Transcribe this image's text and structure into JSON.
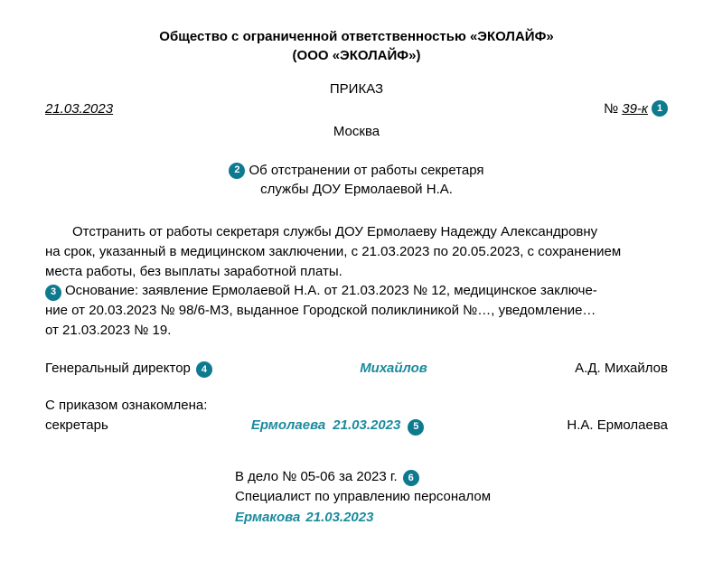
{
  "header": {
    "line1": "Общество с ограниченной ответственностью «ЭКОЛАЙФ»",
    "line2": "(ООО «ЭКОЛАЙФ»)"
  },
  "order_title": "ПРИКАЗ",
  "date": "21.03.2023",
  "number_label": "№",
  "number_value": "39-к",
  "city": "Москва",
  "subject": {
    "line1": "Об отстранении от работы секретаря",
    "line2": "службы ДОУ Ермолаевой Н.А."
  },
  "body": {
    "para1_l1": "Отстранить от работы секретаря службы ДОУ Ермолаеву Надежду Александровну",
    "para1_l2": "на срок, указанный в медицинском заключении, с 21.03.2023 по 20.05.2023, с сохранением",
    "para1_l3": "места работы, без выплаты заработной платы.",
    "basis_l1": "Основание: заявление Ермолаевой Н.А. от 21.03.2023 № 12, медицинское заключе-",
    "basis_l2": "ние от 20.03.2023 № 98/6-МЗ, выданное Городской поликлиникой №…, уведомление…",
    "basis_l3": "от 21.03.2023 № 19."
  },
  "signer": {
    "position": "Генеральный директор",
    "signature": "Михайлов",
    "name": "А.Д. Михайлов"
  },
  "ack": {
    "title": "С приказом ознакомлена:",
    "position": "секретарь",
    "signature": "Ермолаева",
    "date": "21.03.2023",
    "name": "Н.А. Ермолаева"
  },
  "file": {
    "line1": "В дело № 05-06 за 2023 г.",
    "line2": "Специалист по управлению персоналом",
    "signature": "Ермакова",
    "date": "21.03.2023"
  },
  "markers": {
    "m1": "1",
    "m2": "2",
    "m3": "3",
    "m4": "4",
    "m5": "5",
    "m6": "6"
  },
  "colors": {
    "marker_bg": "#0d7a8f",
    "signature_color": "#1a8b9e"
  }
}
